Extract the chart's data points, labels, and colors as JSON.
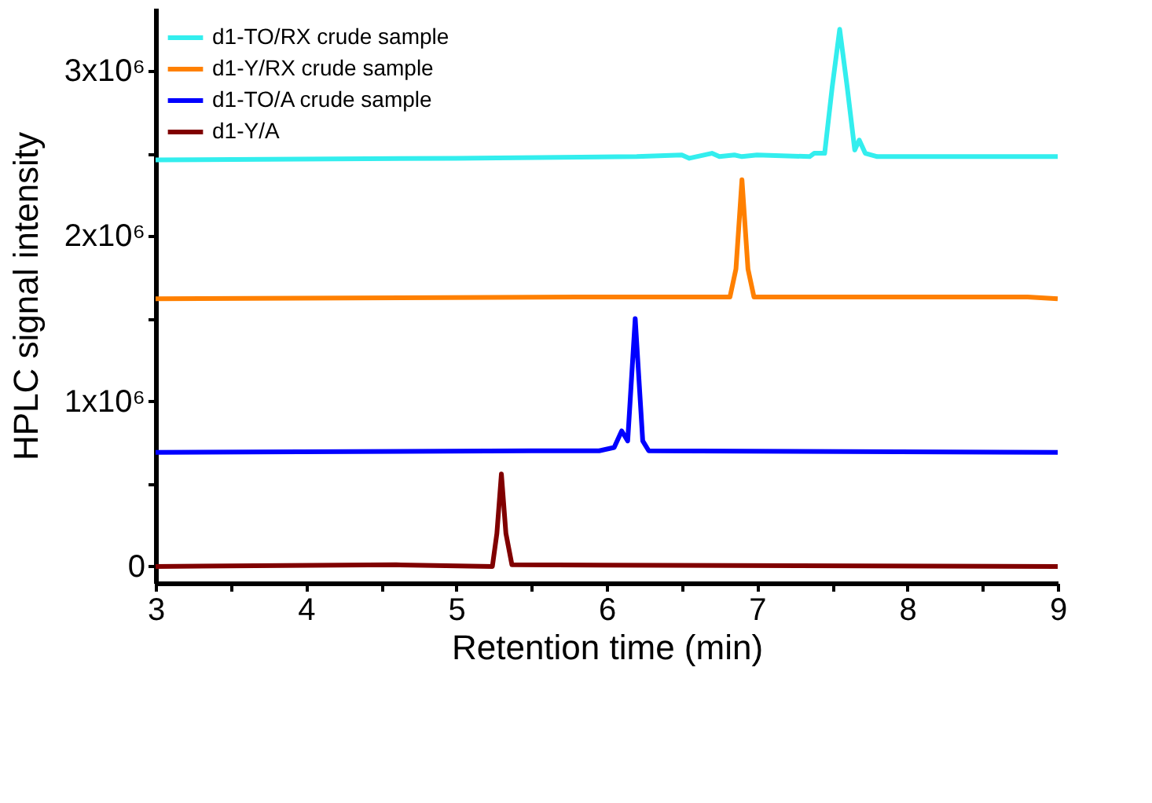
{
  "chart_data": {
    "type": "line",
    "xlabel": "Retention time (min)",
    "ylabel": "HPLC signal intensity",
    "xlim": [
      3,
      9
    ],
    "ylim": [
      -100000,
      3380000
    ],
    "xticks": [
      3,
      {
        "value": 3.5,
        "label": null
      },
      4,
      {
        "value": 4.5,
        "label": null
      },
      5,
      {
        "value": 5.5,
        "label": null
      },
      6,
      {
        "value": 6.5,
        "label": null
      },
      7,
      {
        "value": 7.5,
        "label": null
      },
      8,
      {
        "value": 8.5,
        "label": null
      },
      9
    ],
    "yticks": [
      0,
      {
        "value": 500000,
        "label": null
      },
      {
        "value": 1000000,
        "label": "1x10⁶"
      },
      {
        "value": 1500000,
        "label": null
      },
      {
        "value": 2000000,
        "label": "2x10⁶"
      },
      {
        "value": 2500000,
        "label": null
      },
      {
        "value": 3000000,
        "label": "3x10⁶"
      }
    ],
    "legend": "top left",
    "grid": false,
    "marker": "none",
    "line_style": "solid",
    "series": [
      {
        "name": "d1-TO/RX crude sample",
        "color": "#33eeee",
        "x": [
          3,
          5,
          6.2,
          6.5,
          6.55,
          6.7,
          6.75,
          6.85,
          6.9,
          7.0,
          7.35,
          7.38,
          7.45,
          7.5,
          7.55,
          7.6,
          7.65,
          7.68,
          7.72,
          7.8,
          9
        ],
        "values": [
          2460000,
          2470000,
          2480000,
          2490000,
          2470000,
          2500000,
          2480000,
          2490000,
          2480000,
          2490000,
          2480000,
          2500000,
          2500000,
          2900000,
          3250000,
          2900000,
          2520000,
          2580000,
          2500000,
          2480000,
          2480000
        ]
      },
      {
        "name": "d1-Y/RX crude sample",
        "color": "#ff8000",
        "x": [
          3,
          5.8,
          6.82,
          6.86,
          6.9,
          6.94,
          6.98,
          8.8,
          9
        ],
        "values": [
          1620000,
          1630000,
          1630000,
          1800000,
          2340000,
          1800000,
          1630000,
          1630000,
          1620000
        ]
      },
      {
        "name": "d1-TO/A crude sample",
        "color": "#0000ff",
        "x": [
          3,
          5.5,
          5.95,
          6.05,
          6.1,
          6.14,
          6.19,
          6.24,
          6.28,
          9
        ],
        "values": [
          690000,
          700000,
          700000,
          720000,
          820000,
          760000,
          1500000,
          760000,
          700000,
          690000
        ]
      },
      {
        "name": "d1-Y/A",
        "color": "#800000",
        "x": [
          3,
          4.6,
          5.24,
          5.27,
          5.3,
          5.33,
          5.37,
          9
        ],
        "values": [
          0,
          10000,
          0,
          200000,
          560000,
          200000,
          10000,
          0
        ]
      }
    ]
  }
}
